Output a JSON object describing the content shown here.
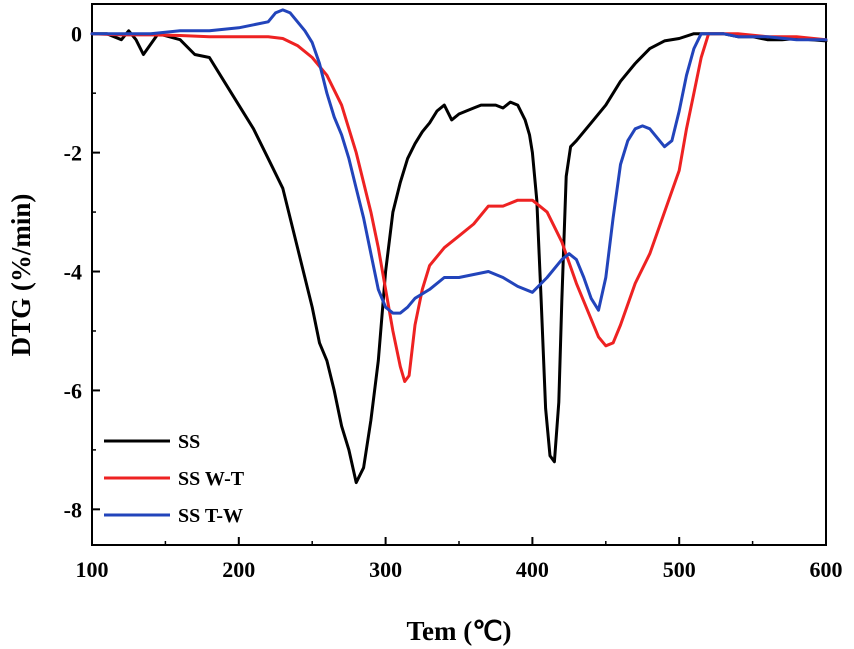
{
  "chart_data": {
    "type": "line",
    "xlabel": "Tem (℃)",
    "ylabel": "DTG (%/min)",
    "xlim": [
      100,
      600
    ],
    "ylim": [
      -8.6,
      0.5
    ],
    "xticks": [
      100,
      200,
      300,
      400,
      500,
      600
    ],
    "xtick_labels": [
      "100",
      "200",
      "300",
      "400",
      "500",
      "600"
    ],
    "yticks": [
      0,
      -2,
      -4,
      -6,
      -8
    ],
    "ytick_labels": [
      "0",
      "-2",
      "-4",
      "-6",
      "-8"
    ],
    "legend_position": "bottom-left",
    "series": [
      {
        "name": "SS",
        "color": "#000000",
        "x": [
          100,
          110,
          120,
          125,
          130,
          135,
          145,
          160,
          170,
          180,
          190,
          200,
          210,
          220,
          230,
          240,
          250,
          255,
          260,
          265,
          270,
          275,
          280,
          285,
          290,
          295,
          300,
          305,
          310,
          315,
          320,
          325,
          330,
          335,
          340,
          345,
          350,
          355,
          360,
          365,
          370,
          375,
          380,
          385,
          390,
          395,
          398,
          400,
          403,
          406,
          409,
          412,
          415,
          418,
          420,
          423,
          426,
          430,
          440,
          450,
          460,
          470,
          480,
          490,
          500,
          510,
          520,
          530,
          540,
          550,
          560,
          570,
          580,
          590,
          600
        ],
        "y": [
          0,
          0,
          -0.1,
          0.05,
          -0.1,
          -0.35,
          0,
          -0.1,
          -0.35,
          -0.4,
          -0.8,
          -1.2,
          -1.6,
          -2.1,
          -2.6,
          -3.6,
          -4.6,
          -5.2,
          -5.5,
          -6.0,
          -6.6,
          -7.0,
          -7.55,
          -7.3,
          -6.5,
          -5.5,
          -4.0,
          -3.0,
          -2.5,
          -2.1,
          -1.85,
          -1.65,
          -1.5,
          -1.3,
          -1.2,
          -1.45,
          -1.35,
          -1.3,
          -1.25,
          -1.2,
          -1.2,
          -1.2,
          -1.25,
          -1.15,
          -1.2,
          -1.45,
          -1.7,
          -2.0,
          -2.8,
          -4.5,
          -6.3,
          -7.1,
          -7.2,
          -6.2,
          -4.5,
          -2.4,
          -1.9,
          -1.8,
          -1.5,
          -1.2,
          -0.8,
          -0.5,
          -0.25,
          -0.12,
          -0.08,
          0,
          0,
          0,
          -0.05,
          -0.05,
          -0.1,
          -0.1,
          -0.08,
          -0.1,
          -0.12
        ]
      },
      {
        "name": "SS W-T",
        "color": "#ee2222",
        "x": [
          100,
          120,
          140,
          160,
          180,
          200,
          210,
          220,
          230,
          240,
          250,
          260,
          270,
          280,
          290,
          295,
          300,
          305,
          310,
          313,
          316,
          320,
          325,
          330,
          340,
          350,
          360,
          370,
          380,
          390,
          400,
          410,
          420,
          430,
          440,
          445,
          450,
          455,
          460,
          470,
          480,
          490,
          500,
          505,
          510,
          515,
          520,
          525,
          530,
          540,
          560,
          580,
          600
        ],
        "y": [
          0,
          -0.02,
          -0.02,
          -0.03,
          -0.05,
          -0.05,
          -0.05,
          -0.05,
          -0.08,
          -0.2,
          -0.4,
          -0.7,
          -1.2,
          -2.0,
          -3.0,
          -3.6,
          -4.3,
          -5.0,
          -5.6,
          -5.85,
          -5.75,
          -4.9,
          -4.3,
          -3.9,
          -3.6,
          -3.4,
          -3.2,
          -2.9,
          -2.9,
          -2.8,
          -2.8,
          -3.0,
          -3.5,
          -4.2,
          -4.8,
          -5.1,
          -5.25,
          -5.2,
          -4.9,
          -4.2,
          -3.7,
          -3.0,
          -2.3,
          -1.6,
          -1.0,
          -0.4,
          0,
          0,
          0,
          0,
          -0.05,
          -0.05,
          -0.1
        ]
      },
      {
        "name": "SS T-W",
        "color": "#2244bb",
        "x": [
          100,
          120,
          140,
          160,
          180,
          200,
          210,
          220,
          225,
          230,
          235,
          240,
          245,
          250,
          255,
          260,
          265,
          270,
          275,
          280,
          285,
          290,
          295,
          300,
          305,
          310,
          315,
          320,
          330,
          340,
          350,
          360,
          370,
          380,
          390,
          400,
          410,
          420,
          425,
          430,
          435,
          440,
          445,
          450,
          455,
          460,
          465,
          470,
          475,
          480,
          485,
          490,
          495,
          500,
          505,
          510,
          515,
          520,
          525,
          530,
          540,
          560,
          580,
          600
        ],
        "y": [
          0,
          0,
          0,
          0.05,
          0.05,
          0.1,
          0.15,
          0.2,
          0.35,
          0.4,
          0.35,
          0.2,
          0.05,
          -0.15,
          -0.5,
          -1.0,
          -1.4,
          -1.7,
          -2.1,
          -2.6,
          -3.1,
          -3.7,
          -4.3,
          -4.6,
          -4.7,
          -4.7,
          -4.6,
          -4.45,
          -4.3,
          -4.1,
          -4.1,
          -4.05,
          -4.0,
          -4.1,
          -4.25,
          -4.35,
          -4.1,
          -3.8,
          -3.7,
          -3.8,
          -4.1,
          -4.45,
          -4.65,
          -4.1,
          -3.1,
          -2.2,
          -1.8,
          -1.6,
          -1.55,
          -1.6,
          -1.75,
          -1.9,
          -1.8,
          -1.3,
          -0.7,
          -0.25,
          0,
          0,
          0,
          0,
          -0.05,
          -0.05,
          -0.1,
          -0.1
        ]
      }
    ]
  }
}
